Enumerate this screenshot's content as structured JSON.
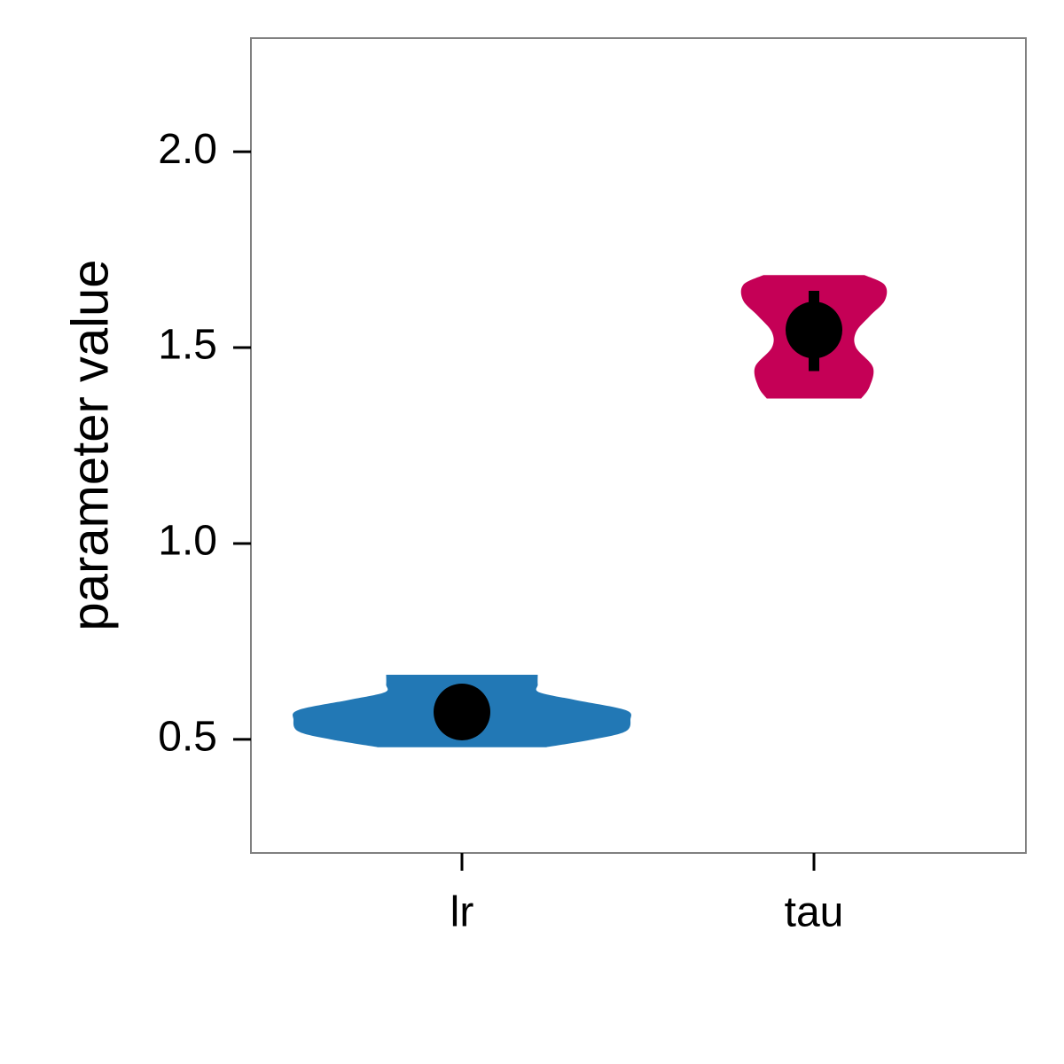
{
  "chart_data": {
    "type": "violin",
    "ylabel": "parameter value",
    "xlabel": "",
    "ylim": [
      0.21,
      2.29
    ],
    "yticks": [
      0.5,
      1.0,
      1.5,
      2.0
    ],
    "ytick_labels": [
      "0.5",
      "1.0",
      "1.5",
      "2.0"
    ],
    "grid": false,
    "legend": "none",
    "categories": [
      "lr",
      "tau"
    ],
    "series": [
      {
        "category": "lr",
        "color": "#2278b5",
        "min": 0.48,
        "max": 0.665,
        "center": 0.57,
        "error_low": 0.57,
        "error_high": 0.57,
        "density": [
          [
            0.48,
            0.5
          ],
          [
            0.5,
            0.78
          ],
          [
            0.52,
            0.97
          ],
          [
            0.55,
            1.0
          ],
          [
            0.575,
            0.97
          ],
          [
            0.6,
            0.68
          ],
          [
            0.62,
            0.46
          ],
          [
            0.64,
            0.45
          ],
          [
            0.665,
            0.45
          ]
        ]
      },
      {
        "category": "tau",
        "color": "#c50056",
        "min": 1.37,
        "max": 1.685,
        "center": 1.545,
        "error_low": 1.44,
        "error_high": 1.645,
        "density": [
          [
            1.37,
            0.28
          ],
          [
            1.4,
            0.33
          ],
          [
            1.45,
            0.35
          ],
          [
            1.5,
            0.25
          ],
          [
            1.54,
            0.25
          ],
          [
            1.58,
            0.33
          ],
          [
            1.62,
            0.42
          ],
          [
            1.66,
            0.42
          ],
          [
            1.685,
            0.3
          ]
        ]
      }
    ]
  }
}
